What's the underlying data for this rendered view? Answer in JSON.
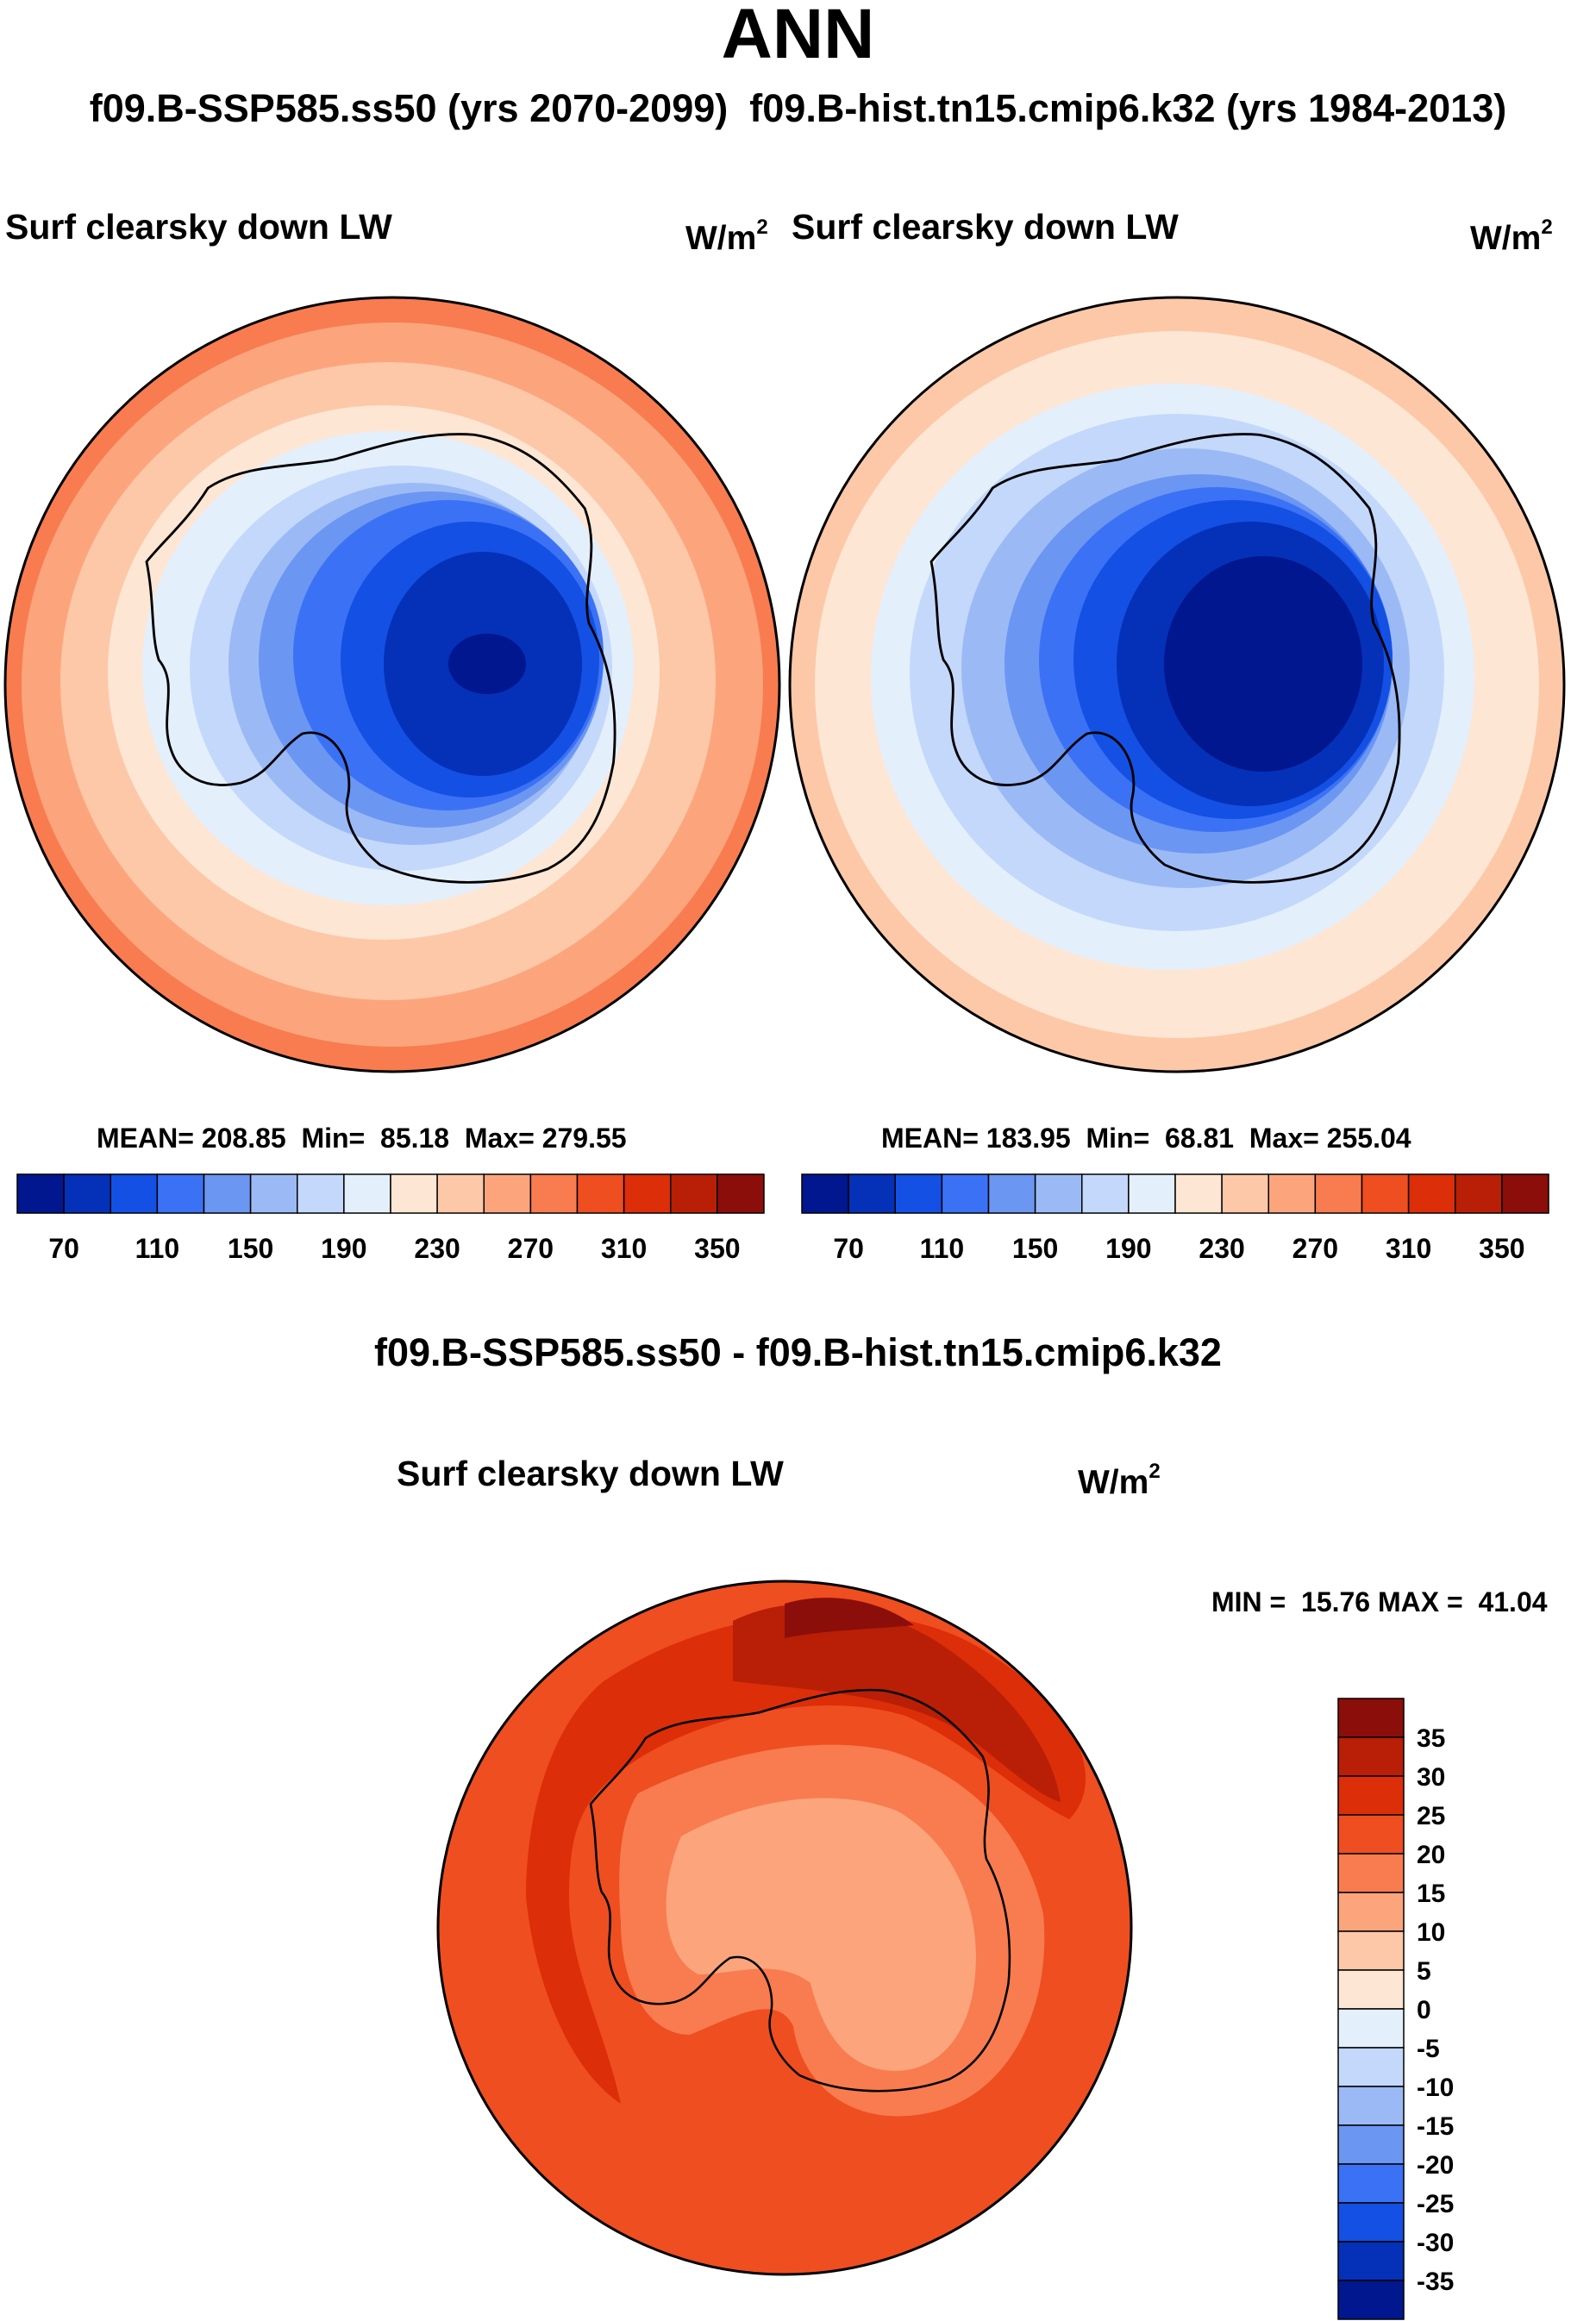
{
  "title": "ANN",
  "subtitle": {
    "case1": "f09.B-SSP585.ss50 (yrs 2070-2099)",
    "case2": "f09.B-hist.tn15.cmip6.k32 (yrs 1984-2013)"
  },
  "panels": [
    {
      "variable": "Surf clearsky down LW",
      "unit_base": "W/m",
      "unit_exp": "2",
      "stats": {
        "mean_label": "MEAN=",
        "mean": "208.85",
        "min_label": "Min=",
        "min": "85.18",
        "max_label": "Max=",
        "max": "279.55"
      },
      "colorbar_ticks": [
        "70",
        "110",
        "150",
        "190",
        "230",
        "270",
        "310",
        "350"
      ]
    },
    {
      "variable": "Surf clearsky down LW",
      "unit_base": "W/m",
      "unit_exp": "2",
      "stats": {
        "mean_label": "MEAN=",
        "mean": "183.95",
        "min_label": "Min=",
        "min": "68.81",
        "max_label": "Max=",
        "max": "255.04"
      },
      "colorbar_ticks": [
        "70",
        "110",
        "150",
        "190",
        "230",
        "270",
        "310",
        "350"
      ]
    }
  ],
  "difference": {
    "title": "f09.B-SSP585.ss50 - f09.B-hist.tn15.cmip6.k32",
    "variable": "Surf clearsky down LW",
    "unit_base": "W/m",
    "unit_exp": "2",
    "stats": {
      "min_label": "MIN =",
      "min": "15.76",
      "max_label": "MAX =",
      "max": "41.04"
    },
    "colorbar_ticks": [
      "35",
      "30",
      "25",
      "20",
      "15",
      "10",
      "5",
      "0",
      "-5",
      "-10",
      "-15",
      "-20",
      "-25",
      "-30",
      "-35"
    ]
  },
  "colors": {
    "abs_scale": [
      "#00178f",
      "#0531b8",
      "#1450e4",
      "#3b72f5",
      "#6b96f2",
      "#9bbaf5",
      "#c3d8fa",
      "#e4effc",
      "#fde6d4",
      "#fdc8a8",
      "#fca57d",
      "#f87c4f",
      "#ef4e20",
      "#dc2e08",
      "#b81f06",
      "#8c0e0a"
    ],
    "diff_scale": [
      "#8c0e0a",
      "#b81f06",
      "#dc2e08",
      "#ef4e20",
      "#f87c4f",
      "#fca57d",
      "#fdc8a8",
      "#fde6d4",
      "#e4effc",
      "#c3d8fa",
      "#9bbaf5",
      "#6b96f2",
      "#3b72f5",
      "#1450e4",
      "#0531b8",
      "#00178f"
    ]
  }
}
